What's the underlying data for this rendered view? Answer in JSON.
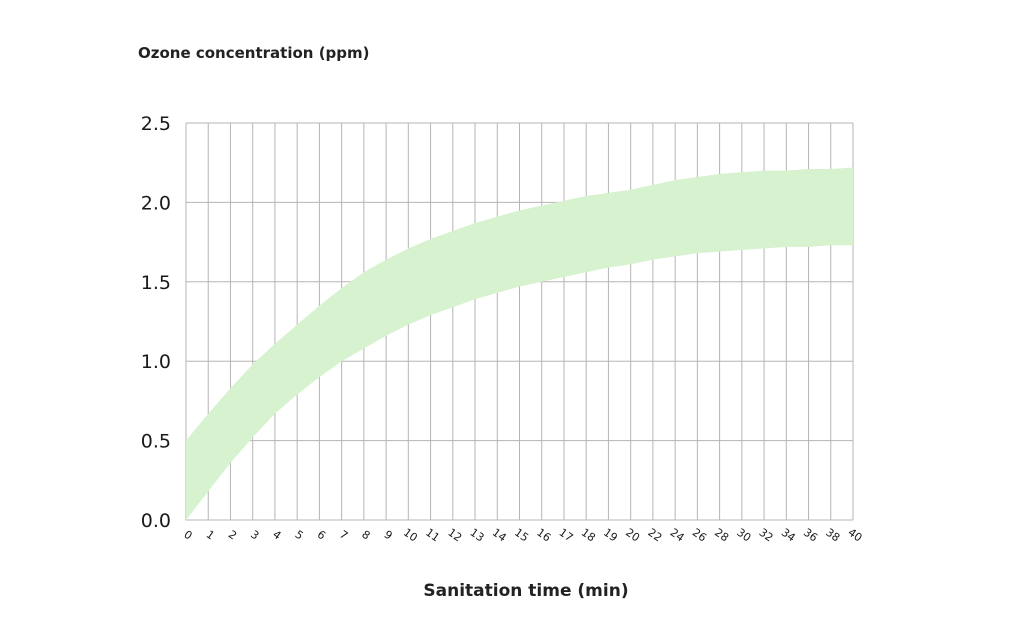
{
  "chart_data": {
    "type": "area",
    "title": "",
    "ylabel": "Ozone concentration (ppm)",
    "xlabel": "Sanitation time (min)",
    "ylim": [
      0,
      2.5
    ],
    "yticks": [
      "0.0",
      "0.5",
      "1.0",
      "1.5",
      "2.0",
      "2.5"
    ],
    "categories": [
      "0",
      "1",
      "2",
      "3",
      "4",
      "5",
      "6",
      "7",
      "8",
      "9",
      "10",
      "11",
      "12",
      "13",
      "14",
      "15",
      "16",
      "17",
      "18",
      "19",
      "20",
      "22",
      "24",
      "26",
      "28",
      "30",
      "32",
      "34",
      "36",
      "38",
      "40"
    ],
    "grid": true,
    "band_color": "#d7f2cf",
    "series": [
      {
        "role": "upper",
        "values": [
          0.5,
          0.67,
          0.83,
          0.98,
          1.11,
          1.23,
          1.35,
          1.46,
          1.56,
          1.64,
          1.71,
          1.77,
          1.82,
          1.87,
          1.91,
          1.95,
          1.98,
          2.01,
          2.04,
          2.06,
          2.08,
          2.11,
          2.14,
          2.16,
          2.18,
          2.19,
          2.2,
          2.2,
          2.21,
          2.21,
          2.22
        ]
      },
      {
        "role": "lower",
        "values": [
          0.0,
          0.18,
          0.36,
          0.52,
          0.67,
          0.79,
          0.9,
          1.0,
          1.08,
          1.16,
          1.23,
          1.29,
          1.34,
          1.39,
          1.43,
          1.47,
          1.5,
          1.53,
          1.56,
          1.59,
          1.61,
          1.64,
          1.66,
          1.68,
          1.69,
          1.7,
          1.71,
          1.72,
          1.72,
          1.73,
          1.73
        ]
      }
    ]
  }
}
